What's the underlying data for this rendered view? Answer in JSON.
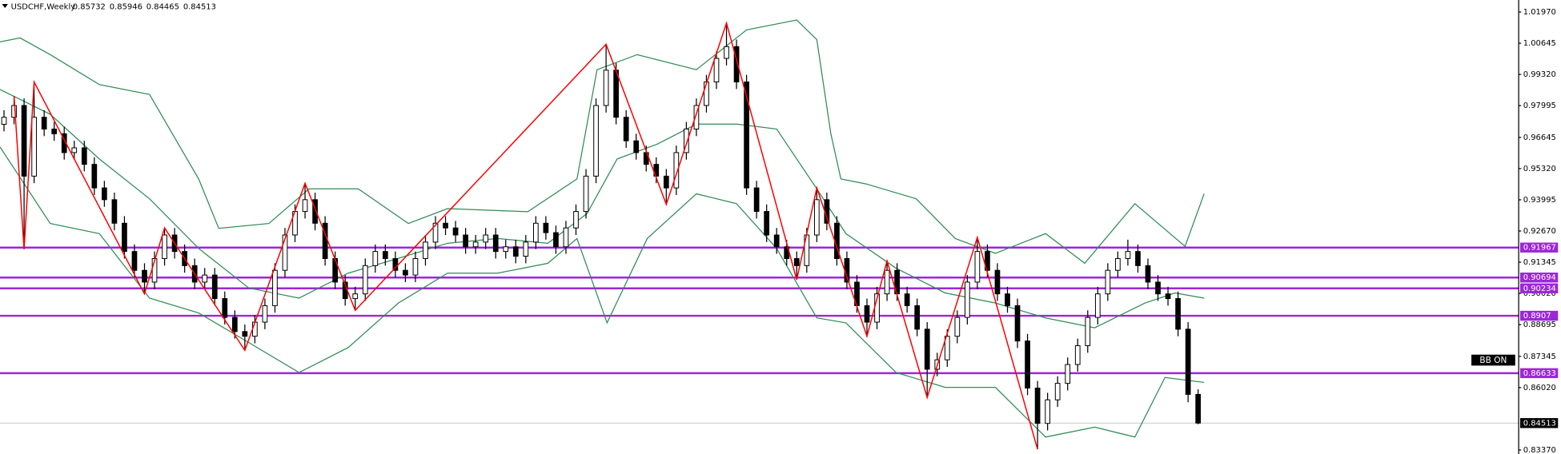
{
  "chart_data": {
    "type": "candlestick",
    "symbol": "USDCHF,Weekly",
    "annotation": "BB ON",
    "up_color": "#ffffff",
    "down_color": "#000000",
    "xlim": [
      -0.4,
      150.9
    ],
    "ylim": [
      0.832,
      1.0248
    ],
    "yticks": [
      {
        "value": 1.0197,
        "label": "1.01970"
      },
      1.00645,
      {
        "value": 0.9932,
        "label": "0.99320"
      },
      0.97995,
      0.96645,
      {
        "value": 0.9532,
        "label": "0.95320"
      },
      0.93995,
      {
        "value": 0.9267,
        "label": "0.92670"
      },
      0.91345,
      {
        "value": 0.9002,
        "label": "0.90020"
      },
      0.88695,
      0.87345,
      {
        "value": 0.8602,
        "label": "0.86020"
      },
      {
        "value": 0.8337,
        "label": "0.83370"
      }
    ],
    "levels": [
      0.91967,
      0.90694,
      0.90234,
      0.8907,
      0.86633
    ],
    "level_color": "#9c27d8",
    "candles": [
      [
        0.972,
        0.978,
        0.969,
        0.975
      ],
      [
        0.975,
        0.984,
        0.972,
        0.98
      ],
      [
        0.98,
        0.983,
        0.919,
        0.95
      ],
      [
        0.95,
        0.99,
        0.947,
        0.975
      ],
      [
        0.975,
        0.978,
        0.967,
        0.97
      ],
      [
        0.97,
        0.973,
        0.965,
        0.968
      ],
      [
        0.968,
        0.971,
        0.957,
        0.96
      ],
      [
        0.96,
        0.965,
        0.957,
        0.962
      ],
      [
        0.962,
        0.965,
        0.952,
        0.955
      ],
      [
        0.955,
        0.958,
        0.942,
        0.945
      ],
      [
        0.945,
        0.948,
        0.937,
        0.94
      ],
      [
        0.94,
        0.943,
        0.927,
        0.93
      ],
      [
        0.93,
        0.933,
        0.915,
        0.918
      ],
      [
        0.918,
        0.921,
        0.907,
        0.91
      ],
      [
        0.91,
        0.913,
        0.9,
        0.905
      ],
      [
        0.905,
        0.918,
        0.902,
        0.915
      ],
      [
        0.915,
        0.928,
        0.912,
        0.925
      ],
      [
        0.925,
        0.928,
        0.915,
        0.918
      ],
      [
        0.918,
        0.921,
        0.909,
        0.912
      ],
      [
        0.912,
        0.915,
        0.902,
        0.905
      ],
      [
        0.905,
        0.911,
        0.902,
        0.908
      ],
      [
        0.908,
        0.911,
        0.895,
        0.898
      ],
      [
        0.898,
        0.901,
        0.887,
        0.89
      ],
      [
        0.89,
        0.893,
        0.881,
        0.884
      ],
      [
        0.884,
        0.887,
        0.876,
        0.882
      ],
      [
        0.882,
        0.891,
        0.879,
        0.888
      ],
      [
        0.888,
        0.898,
        0.885,
        0.895
      ],
      [
        0.895,
        0.913,
        0.892,
        0.91
      ],
      [
        0.91,
        0.928,
        0.907,
        0.925
      ],
      [
        0.925,
        0.938,
        0.922,
        0.935
      ],
      [
        0.935,
        0.947,
        0.932,
        0.94
      ],
      [
        0.94,
        0.943,
        0.927,
        0.93
      ],
      [
        0.93,
        0.933,
        0.912,
        0.915
      ],
      [
        0.915,
        0.918,
        0.902,
        0.905
      ],
      [
        0.905,
        0.908,
        0.895,
        0.898
      ],
      [
        0.898,
        0.903,
        0.893,
        0.9
      ],
      [
        0.9,
        0.915,
        0.897,
        0.912
      ],
      [
        0.912,
        0.921,
        0.909,
        0.918
      ],
      [
        0.918,
        0.921,
        0.912,
        0.915
      ],
      [
        0.915,
        0.918,
        0.907,
        0.91
      ],
      [
        0.91,
        0.913,
        0.905,
        0.908
      ],
      [
        0.908,
        0.918,
        0.905,
        0.915
      ],
      [
        0.915,
        0.925,
        0.912,
        0.922
      ],
      [
        0.922,
        0.933,
        0.919,
        0.93
      ],
      [
        0.93,
        0.933,
        0.925,
        0.928
      ],
      [
        0.928,
        0.931,
        0.922,
        0.925
      ],
      [
        0.925,
        0.928,
        0.917,
        0.92
      ],
      [
        0.92,
        0.925,
        0.917,
        0.922
      ],
      [
        0.922,
        0.928,
        0.919,
        0.925
      ],
      [
        0.925,
        0.928,
        0.915,
        0.918
      ],
      [
        0.918,
        0.923,
        0.915,
        0.92
      ],
      [
        0.92,
        0.923,
        0.913,
        0.916
      ],
      [
        0.916,
        0.925,
        0.913,
        0.922
      ],
      [
        0.922,
        0.933,
        0.919,
        0.93
      ],
      [
        0.93,
        0.933,
        0.923,
        0.926
      ],
      [
        0.926,
        0.929,
        0.917,
        0.92
      ],
      [
        0.92,
        0.931,
        0.917,
        0.928
      ],
      [
        0.928,
        0.938,
        0.925,
        0.935
      ],
      [
        0.935,
        0.953,
        0.932,
        0.95
      ],
      [
        0.95,
        0.983,
        0.947,
        0.98
      ],
      [
        0.98,
        1.006,
        0.977,
        0.995
      ],
      [
        0.995,
        0.998,
        0.972,
        0.975
      ],
      [
        0.975,
        0.978,
        0.962,
        0.965
      ],
      [
        0.965,
        0.968,
        0.957,
        0.96
      ],
      [
        0.96,
        0.963,
        0.952,
        0.955
      ],
      [
        0.955,
        0.958,
        0.947,
        0.95
      ],
      [
        0.95,
        0.953,
        0.938,
        0.945
      ],
      [
        0.945,
        0.963,
        0.942,
        0.96
      ],
      [
        0.96,
        0.973,
        0.957,
        0.97
      ],
      [
        0.97,
        0.983,
        0.967,
        0.98
      ],
      [
        0.98,
        0.993,
        0.977,
        0.99
      ],
      [
        0.99,
        1.003,
        0.987,
        1.0
      ],
      [
        1.0,
        1.015,
        0.997,
        1.005
      ],
      [
        1.005,
        1.008,
        0.987,
        0.99
      ],
      [
        0.99,
        0.993,
        0.942,
        0.945
      ],
      [
        0.945,
        0.948,
        0.932,
        0.935
      ],
      [
        0.935,
        0.938,
        0.922,
        0.925
      ],
      [
        0.925,
        0.928,
        0.917,
        0.92
      ],
      [
        0.92,
        0.923,
        0.912,
        0.915
      ],
      [
        0.915,
        0.918,
        0.906,
        0.912
      ],
      [
        0.912,
        0.928,
        0.909,
        0.925
      ],
      [
        0.925,
        0.945,
        0.922,
        0.94
      ],
      [
        0.94,
        0.943,
        0.927,
        0.93
      ],
      [
        0.93,
        0.933,
        0.912,
        0.915
      ],
      [
        0.915,
        0.918,
        0.902,
        0.905
      ],
      [
        0.905,
        0.908,
        0.892,
        0.895
      ],
      [
        0.895,
        0.898,
        0.882,
        0.888
      ],
      [
        0.888,
        0.903,
        0.885,
        0.9
      ],
      [
        0.9,
        0.914,
        0.897,
        0.91
      ],
      [
        0.91,
        0.913,
        0.897,
        0.9
      ],
      [
        0.9,
        0.903,
        0.892,
        0.895
      ],
      [
        0.895,
        0.898,
        0.882,
        0.885
      ],
      [
        0.885,
        0.888,
        0.856,
        0.868
      ],
      [
        0.868,
        0.875,
        0.865,
        0.872
      ],
      [
        0.872,
        0.885,
        0.869,
        0.882
      ],
      [
        0.882,
        0.893,
        0.879,
        0.89
      ],
      [
        0.89,
        0.908,
        0.887,
        0.905
      ],
      [
        0.905,
        0.924,
        0.902,
        0.918
      ],
      [
        0.918,
        0.921,
        0.907,
        0.91
      ],
      [
        0.91,
        0.913,
        0.897,
        0.9
      ],
      [
        0.9,
        0.903,
        0.892,
        0.895
      ],
      [
        0.895,
        0.898,
        0.877,
        0.88
      ],
      [
        0.88,
        0.883,
        0.857,
        0.86
      ],
      [
        0.86,
        0.863,
        0.834,
        0.845
      ],
      [
        0.845,
        0.858,
        0.842,
        0.855
      ],
      [
        0.855,
        0.865,
        0.852,
        0.862
      ],
      [
        0.862,
        0.873,
        0.859,
        0.87
      ],
      [
        0.87,
        0.881,
        0.867,
        0.878
      ],
      [
        0.878,
        0.893,
        0.875,
        0.89
      ],
      [
        0.89,
        0.903,
        0.887,
        0.9
      ],
      [
        0.9,
        0.913,
        0.897,
        0.91
      ],
      [
        0.91,
        0.918,
        0.907,
        0.915
      ],
      [
        0.915,
        0.923,
        0.912,
        0.918
      ],
      [
        0.918,
        0.921,
        0.909,
        0.912
      ],
      [
        0.912,
        0.915,
        0.902,
        0.905
      ],
      [
        0.905,
        0.908,
        0.897,
        0.9
      ],
      [
        0.9,
        0.903,
        0.895,
        0.898
      ],
      [
        0.898,
        0.901,
        0.882,
        0.885
      ],
      [
        0.885,
        0.888,
        0.854,
        0.85732
      ],
      [
        0.85732,
        0.85946,
        0.84465,
        0.84513
      ]
    ],
    "zigzag": {
      "color": "#ff0000",
      "x": [
        1,
        2,
        3,
        14,
        16,
        24,
        30,
        35,
        60,
        66,
        72,
        79,
        81,
        86,
        88,
        92,
        97,
        103
      ],
      "values": [
        0.984,
        0.919,
        0.99,
        0.9,
        0.928,
        0.876,
        0.947,
        0.893,
        1.006,
        0.938,
        1.015,
        0.906,
        0.945,
        0.882,
        0.914,
        0.856,
        0.924,
        0.834
      ]
    },
    "band_color": "#2e8b57",
    "bands": [
      {
        "x": [
          -0.4,
          1.6,
          4.6,
          9.5,
          14.5,
          19.4,
          21.4,
          26.4,
          30.4,
          35.3,
          40.3,
          44.2,
          52.2,
          57.1,
          59.1,
          63.1,
          69.0,
          74.0,
          79.0,
          81.0,
          82.4,
          83.4,
          85.9,
          90.9,
          94.8,
          98.8,
          103.8,
          107.7,
          112.7,
          117.7,
          119.6
        ],
        "values": [
          1.007,
          1.0087,
          1.0016,
          0.9889,
          0.9847,
          0.9488,
          0.9278,
          0.9299,
          0.9446,
          0.9446,
          0.9299,
          0.9362,
          0.9349,
          0.9488,
          0.9952,
          1.0016,
          0.9952,
          1.0121,
          1.0163,
          1.008,
          0.968,
          0.9488,
          0.9467,
          0.9404,
          0.9235,
          0.9172,
          0.9256,
          0.913,
          0.9383,
          0.9202,
          0.9425
        ]
      },
      {
        "x": [
          -0.4,
          4.6,
          9.5,
          14.5,
          19.4,
          24.4,
          29.4,
          34.3,
          39.3,
          44.2,
          49.2,
          54.2,
          58.1,
          61.1,
          65.1,
          69.0,
          73.0,
          77.0,
          81.0,
          83.9,
          88.9,
          93.8,
          98.8,
          103.8,
          108.7,
          113.7,
          116.7,
          119.6
        ],
        "values": [
          0.9868,
          0.9763,
          0.9573,
          0.9404,
          0.9193,
          0.9025,
          0.8982,
          0.9088,
          0.9151,
          0.9215,
          0.9235,
          0.9215,
          0.9341,
          0.9573,
          0.9636,
          0.9721,
          0.9721,
          0.97,
          0.9446,
          0.9256,
          0.9109,
          0.9004,
          0.8961,
          0.8898,
          0.8856,
          0.8961,
          0.9004,
          0.8982
        ]
      },
      {
        "x": [
          -0.4,
          4.6,
          9.5,
          14.5,
          19.4,
          24.4,
          29.4,
          34.3,
          39.3,
          44.2,
          49.2,
          54.2,
          57.1,
          60.1,
          64.1,
          69.0,
          73.0,
          77.0,
          81.0,
          83.9,
          88.9,
          93.8,
          98.8,
          103.8,
          108.7,
          112.7,
          115.7,
          119.6
        ],
        "values": [
          0.9624,
          0.9299,
          0.9256,
          0.8982,
          0.8919,
          0.8793,
          0.8666,
          0.8772,
          0.8961,
          0.9088,
          0.9088,
          0.913,
          0.9235,
          0.8877,
          0.9235,
          0.9425,
          0.9383,
          0.9193,
          0.8898,
          0.8877,
          0.8666,
          0.8603,
          0.8603,
          0.8392,
          0.8434,
          0.8392,
          0.8645,
          0.8624
        ]
      }
    ]
  }
}
